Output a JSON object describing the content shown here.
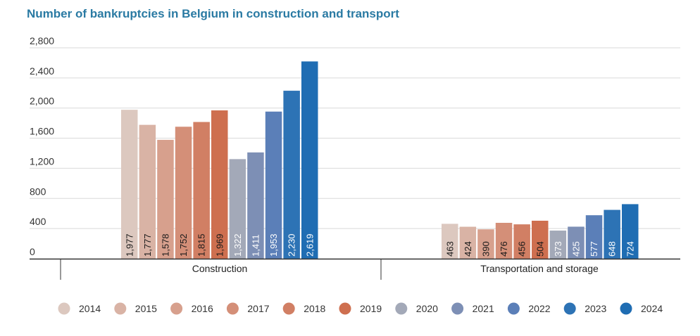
{
  "chart_data": {
    "type": "bar",
    "title": "Number of bankruptcies in Belgium in construction and transport",
    "categories": [
      "Construction",
      "Transportation and storage"
    ],
    "y_ticks": [
      "0",
      "400",
      "800",
      "1,200",
      "1,600",
      "2,000",
      "2,400",
      "2,800"
    ],
    "ylim": [
      0,
      2800
    ],
    "grid": true,
    "legend_position": "bottom",
    "series": [
      {
        "name": "2014",
        "color": "#dcc8bf",
        "values": [
          1977,
          463
        ],
        "labels": [
          "1,977",
          "463"
        ]
      },
      {
        "name": "2015",
        "color": "#d9b3a5",
        "values": [
          1777,
          424
        ],
        "labels": [
          "1,777",
          "424"
        ]
      },
      {
        "name": "2016",
        "color": "#d7a08d",
        "values": [
          1578,
          390
        ],
        "labels": [
          "1,578",
          "390"
        ]
      },
      {
        "name": "2017",
        "color": "#d48f78",
        "values": [
          1752,
          476
        ],
        "labels": [
          "1,752",
          "476"
        ]
      },
      {
        "name": "2018",
        "color": "#d17f64",
        "values": [
          1815,
          456
        ],
        "labels": [
          "1,815",
          "456"
        ]
      },
      {
        "name": "2019",
        "color": "#ce6f4f",
        "values": [
          1969,
          504
        ],
        "labels": [
          "1,969",
          "504"
        ]
      },
      {
        "name": "2020",
        "color": "#a3a9b8",
        "values": [
          1322,
          373
        ],
        "labels": [
          "1,322",
          "373"
        ]
      },
      {
        "name": "2021",
        "color": "#7d8fb5",
        "values": [
          1411,
          425
        ],
        "labels": [
          "1,411",
          "425"
        ]
      },
      {
        "name": "2022",
        "color": "#5b7fb8",
        "values": [
          1953,
          577
        ],
        "labels": [
          "1,953",
          "577"
        ]
      },
      {
        "name": "2023",
        "color": "#2d73b5",
        "values": [
          2230,
          648
        ],
        "labels": [
          "2,230",
          "648"
        ]
      },
      {
        "name": "2024",
        "color": "#1f6db3",
        "values": [
          2619,
          724
        ],
        "labels": [
          "2,619",
          "724"
        ]
      }
    ]
  }
}
